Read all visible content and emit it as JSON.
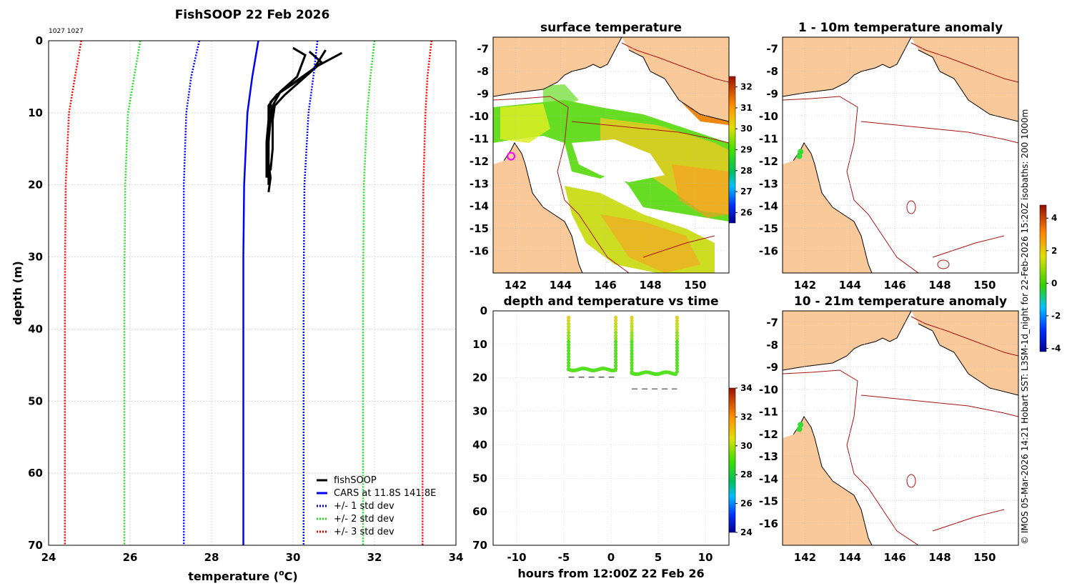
{
  "chart_data": [
    {
      "type": "line",
      "title": "FishSOOP 22 Feb 2026",
      "corner_note": "1027 1027",
      "xlabel": "temperature (",
      "xlabel_sup": "o",
      "xlabel_unit": "C)",
      "ylabel": "depth (m)",
      "xlim": [
        24,
        34
      ],
      "ylim": [
        0,
        70
      ],
      "xticks": [
        24,
        26,
        28,
        30,
        32,
        34
      ],
      "yticks": [
        0,
        10,
        20,
        30,
        40,
        50,
        60,
        70
      ],
      "colors": {
        "fishsoop": "#000000",
        "cars": "#0000ff",
        "std1": "#0000ff",
        "std2": "#22dd22",
        "std3": "#ff0000"
      },
      "series": [
        {
          "name": "fishSOOP",
          "key": "fishsoop",
          "style": "solid",
          "x": [
            30.0,
            30.3,
            30.1,
            29.7,
            29.5,
            29.45,
            29.4,
            29.35,
            29.4,
            29.45,
            29.4
          ],
          "y": [
            1,
            2,
            5,
            7,
            9,
            11,
            13,
            15,
            17,
            19,
            21
          ]
        },
        {
          "name": "fishSOOP",
          "key": "fishsoop",
          "style": "solid",
          "x": [
            30.4,
            30.7,
            30.2,
            29.8,
            29.55,
            29.5,
            29.5,
            29.5,
            29.45
          ],
          "y": [
            1.5,
            3,
            5.5,
            7.5,
            9,
            11,
            13,
            15,
            18
          ]
        },
        {
          "name": "fishSOOP",
          "key": "fishsoop",
          "style": "solid",
          "x": [
            30.8,
            30.5,
            30.0,
            29.6,
            29.4,
            29.4,
            29.35,
            29.35
          ],
          "y": [
            1.3,
            4,
            6,
            7.5,
            9,
            11,
            14,
            19
          ]
        },
        {
          "name": "fishSOOP",
          "key": "fishsoop",
          "style": "solid",
          "x": [
            31.2,
            30.6,
            30.1,
            29.7,
            29.45,
            29.45,
            29.4,
            29.4
          ],
          "y": [
            1.7,
            3.5,
            5.5,
            7,
            8.5,
            11,
            14,
            20
          ]
        },
        {
          "name": "CARS at 11.8S 141.8E",
          "key": "cars",
          "style": "solid",
          "x": [
            29.15,
            29.0,
            28.88,
            28.8,
            28.78,
            28.78,
            28.78,
            28.78
          ],
          "y": [
            0,
            5,
            10,
            20,
            30,
            45,
            60,
            70
          ]
        },
        {
          "name": "+/- 1 std dev",
          "key": "std1",
          "style": "dotted",
          "x": [
            27.7,
            27.5,
            27.38,
            27.32,
            27.32,
            27.32,
            27.32
          ],
          "y": [
            0,
            5,
            10,
            20,
            35,
            55,
            70
          ]
        },
        {
          "name": "",
          "key": "std1",
          "style": "dotted",
          "x": [
            30.6,
            30.5,
            30.38,
            30.28,
            30.26,
            30.26,
            30.26
          ],
          "y": [
            0,
            5,
            10,
            20,
            35,
            55,
            70
          ]
        },
        {
          "name": "+/- 2 std dev",
          "key": "std2",
          "style": "dotted",
          "x": [
            26.25,
            26.1,
            25.95,
            25.88,
            25.86,
            25.86,
            25.86
          ],
          "y": [
            0,
            5,
            10,
            20,
            35,
            55,
            70
          ]
        },
        {
          "name": "",
          "key": "std2",
          "style": "dotted",
          "x": [
            32.0,
            31.9,
            31.82,
            31.74,
            31.72,
            31.72,
            31.72
          ],
          "y": [
            0,
            5,
            10,
            20,
            35,
            55,
            70
          ]
        },
        {
          "name": "+/- 3 std dev",
          "key": "std3",
          "style": "dotted",
          "x": [
            24.8,
            24.65,
            24.5,
            24.42,
            24.4,
            24.4,
            24.4
          ],
          "y": [
            0,
            5,
            10,
            20,
            35,
            55,
            70
          ]
        },
        {
          "name": "",
          "key": "std3",
          "style": "dotted",
          "x": [
            33.4,
            33.3,
            33.25,
            33.2,
            33.18,
            33.18,
            33.18
          ],
          "y": [
            0,
            5,
            10,
            20,
            35,
            55,
            70
          ]
        }
      ],
      "legend": [
        {
          "label": "fishSOOP",
          "key": "fishsoop",
          "style": "solid"
        },
        {
          "label": "CARS at 11.8S 141.8E",
          "key": "cars",
          "style": "solid"
        },
        {
          "label": "+/- 1 std dev",
          "key": "std1",
          "style": "dotted"
        },
        {
          "label": "+/- 2 std dev",
          "key": "std2",
          "style": "dotted"
        },
        {
          "label": "+/- 3 std dev",
          "key": "std3",
          "style": "dotted"
        }
      ],
      "legend_position": "bottom-right"
    },
    {
      "type": "heatmap",
      "title": "surface temperature",
      "xlim": [
        141,
        151.5
      ],
      "ylim": [
        -17,
        -6.5
      ],
      "xticks": [
        142,
        144,
        146,
        148,
        150
      ],
      "yticks": [
        -7,
        -8,
        -9,
        -10,
        -11,
        -12,
        -13,
        -14,
        -15,
        -16
      ],
      "colorbar": {
        "ticks": [
          26,
          27,
          28,
          29,
          30,
          31,
          32
        ],
        "range": [
          25.5,
          32.5
        ]
      },
      "marker": {
        "lon": 141.8,
        "lat": -11.8,
        "color": "#ff00ff"
      }
    },
    {
      "type": "heatmap",
      "title": "1 - 10m temperature anomaly",
      "xlim": [
        141,
        151.5
      ],
      "ylim": [
        -17,
        -6.5
      ],
      "xticks": [
        142,
        144,
        146,
        148,
        150
      ],
      "yticks": [
        -7,
        -8,
        -9,
        -10,
        -11,
        -12,
        -13,
        -14,
        -15,
        -16
      ],
      "points": [
        {
          "lon": 141.8,
          "lat": -11.6
        },
        {
          "lon": 141.75,
          "lat": -11.8
        }
      ],
      "point_color": "#33dd33"
    },
    {
      "type": "heatmap",
      "title": "10 - 21m temperature anomaly",
      "xlim": [
        141,
        151.5
      ],
      "ylim": [
        -17,
        -6.5
      ],
      "xticks": [
        142,
        144,
        146,
        148,
        150
      ],
      "yticks": [
        -7,
        -8,
        -9,
        -10,
        -11,
        -12,
        -13,
        -14,
        -15,
        -16
      ],
      "points": [
        {
          "lon": 141.8,
          "lat": -11.6
        },
        {
          "lon": 141.75,
          "lat": -11.8
        }
      ],
      "point_color": "#33dd33",
      "colorbar": {
        "ticks": [
          -4,
          -2,
          0,
          2,
          4
        ],
        "range": [
          -4.2,
          4.8
        ]
      }
    },
    {
      "type": "scatter",
      "title": "depth and temperature vs time",
      "xlabel": "hours from 12:00Z 22 Feb 26",
      "xlim": [
        -12.5,
        12.5
      ],
      "ylim": [
        0,
        70
      ],
      "xticks": [
        -10,
        -5,
        0,
        5,
        10
      ],
      "yticks": [
        0,
        10,
        20,
        30,
        40,
        50,
        60,
        70
      ],
      "colorbar": {
        "ticks": [
          24,
          26,
          28,
          30,
          32,
          34
        ],
        "range": [
          24,
          34
        ]
      },
      "casts": [
        {
          "t_start": -4.5,
          "t_end": 0.5,
          "bottom": 17.5,
          "marker_depth": 19.8
        },
        {
          "t_start": 2.2,
          "t_end": 7.0,
          "bottom": 18.6,
          "marker_depth": 23.3
        }
      ]
    }
  ],
  "credit_text": "© IMOS 05-Mar-2026 14:21 Hobart SST: L3SM-1d_night for 22-Feb-2026 15:20Z isobaths: 200  1000m"
}
